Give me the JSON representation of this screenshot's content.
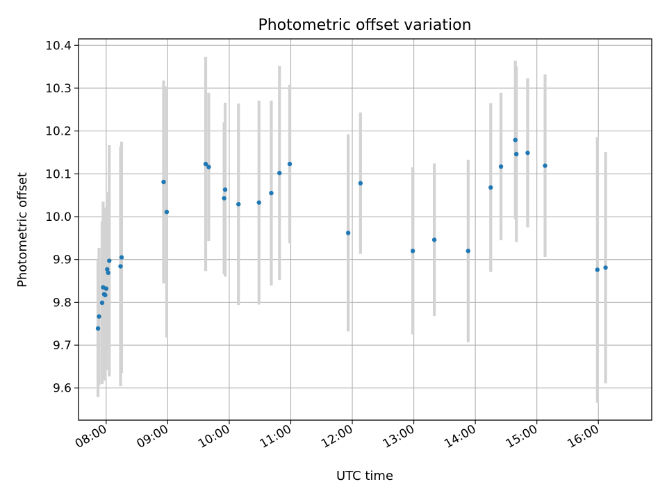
{
  "chart_data": {
    "type": "scatter",
    "title": "Photometric offset variation",
    "xlabel": "UTC time",
    "ylabel": "Photometric offset",
    "xlim": [
      "07:33",
      "16:52"
    ],
    "ylim": [
      9.525,
      10.415
    ],
    "grid": true,
    "x_ticks": [
      "08:00",
      "09:00",
      "10:00",
      "11:00",
      "12:00",
      "13:00",
      "14:00",
      "15:00",
      "16:00"
    ],
    "y_ticks": [
      "9.6",
      "9.7",
      "9.8",
      "9.9",
      "10.0",
      "10.1",
      "10.2",
      "10.3",
      "10.4"
    ],
    "colors": {
      "points": "#1f77b4",
      "errorbars": "#d3d3d3",
      "grid": "#b0b0b0"
    },
    "points": [
      {
        "x": "07:52",
        "y": 9.739,
        "err": 0.16
      },
      {
        "x": "07:53",
        "y": 9.767,
        "err": 0.16
      },
      {
        "x": "07:56",
        "y": 9.799,
        "err": 0.19
      },
      {
        "x": "07:57",
        "y": 9.835,
        "err": 0.2
      },
      {
        "x": "07:58",
        "y": 9.819,
        "err": 0.2
      },
      {
        "x": "07:59",
        "y": 9.817,
        "err": 0.2
      },
      {
        "x": "08:00",
        "y": 9.832,
        "err": 0.19
      },
      {
        "x": "08:01",
        "y": 9.877,
        "err": 0.18
      },
      {
        "x": "08:02",
        "y": 9.869,
        "err": 0.18
      },
      {
        "x": "08:03",
        "y": 9.897,
        "err": 0.27
      },
      {
        "x": "08:14",
        "y": 9.884,
        "err": 0.28
      },
      {
        "x": "08:15",
        "y": 9.905,
        "err": 0.27
      },
      {
        "x": "08:56",
        "y": 10.081,
        "err": 0.237
      },
      {
        "x": "08:59",
        "y": 10.011,
        "err": 0.293
      },
      {
        "x": "09:37",
        "y": 10.123,
        "err": 0.25
      },
      {
        "x": "09:40",
        "y": 10.116,
        "err": 0.173
      },
      {
        "x": "09:55",
        "y": 10.043,
        "err": 0.177
      },
      {
        "x": "09:56",
        "y": 10.063,
        "err": 0.203
      },
      {
        "x": "10:09",
        "y": 10.029,
        "err": 0.235
      },
      {
        "x": "10:29",
        "y": 10.033,
        "err": 0.238
      },
      {
        "x": "10:41",
        "y": 10.055,
        "err": 0.216
      },
      {
        "x": "10:49",
        "y": 10.102,
        "err": 0.25
      },
      {
        "x": "10:59",
        "y": 10.123,
        "err": 0.185
      },
      {
        "x": "11:56",
        "y": 9.962,
        "err": 0.23
      },
      {
        "x": "12:08",
        "y": 10.078,
        "err": 0.165
      },
      {
        "x": "12:59",
        "y": 9.92,
        "err": 0.195
      },
      {
        "x": "13:20",
        "y": 9.946,
        "err": 0.178
      },
      {
        "x": "13:53",
        "y": 9.92,
        "err": 0.213
      },
      {
        "x": "14:15",
        "y": 10.068,
        "err": 0.197
      },
      {
        "x": "14:25",
        "y": 10.117,
        "err": 0.172
      },
      {
        "x": "14:39",
        "y": 10.179,
        "err": 0.185
      },
      {
        "x": "14:40",
        "y": 10.146,
        "err": 0.205
      },
      {
        "x": "14:51",
        "y": 10.149,
        "err": 0.174
      },
      {
        "x": "15:08",
        "y": 10.119,
        "err": 0.213
      },
      {
        "x": "15:59",
        "y": 9.876,
        "err": 0.31
      },
      {
        "x": "16:07",
        "y": 9.881,
        "err": 0.27
      }
    ]
  }
}
